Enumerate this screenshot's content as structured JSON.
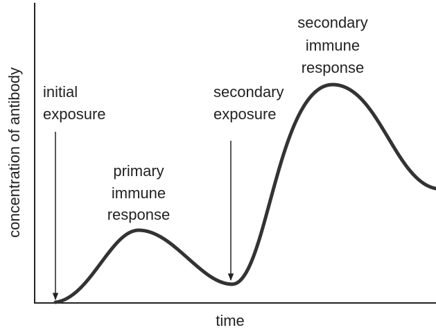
{
  "y_axis_label": "concentration of antibody",
  "x_axis_label": "time",
  "annotations": [
    {
      "lines": [
        "initial",
        "exposure"
      ]
    },
    {
      "lines": [
        "secondary",
        "exposure"
      ]
    },
    {
      "lines": [
        "primary",
        "immune",
        "response"
      ]
    },
    {
      "lines": [
        "secondary",
        "immune",
        "response"
      ]
    }
  ]
}
